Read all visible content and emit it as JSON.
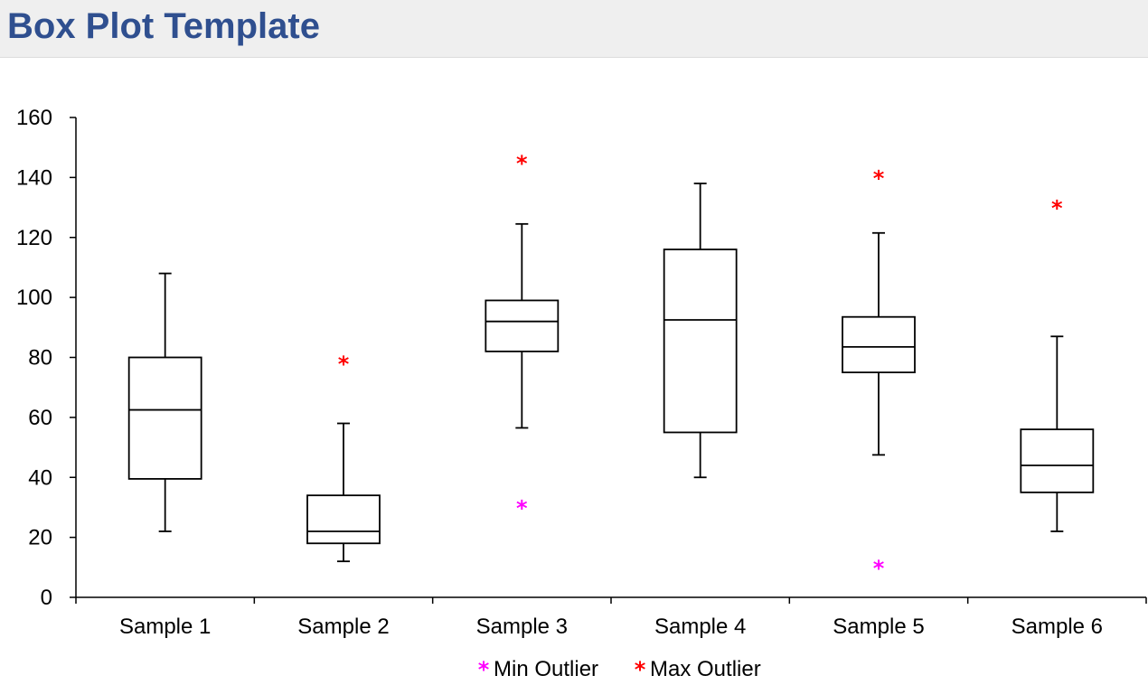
{
  "page": {
    "title": "Box Plot Template"
  },
  "colors": {
    "title": "#2f4f8f",
    "min_outlier": "#ff00ff",
    "max_outlier": "#ff0000",
    "box": "#000000"
  },
  "chart_data": {
    "type": "box",
    "title": "",
    "xlabel": "",
    "ylabel": "",
    "ylim": [
      0,
      160
    ],
    "yticks": [
      0,
      20,
      40,
      60,
      80,
      100,
      120,
      140,
      160
    ],
    "grid": false,
    "legend_position": "bottom",
    "categories": [
      "Sample 1",
      "Sample 2",
      "Sample 3",
      "Sample 4",
      "Sample 5",
      "Sample 6"
    ],
    "boxes": [
      {
        "whisker_low": 22,
        "q1": 39.5,
        "median": 62.5,
        "q3": 80,
        "whisker_high": 108,
        "min_outlier": null,
        "max_outlier": null
      },
      {
        "whisker_low": 12,
        "q1": 18,
        "median": 22,
        "q3": 34,
        "whisker_high": 58,
        "min_outlier": null,
        "max_outlier": 78
      },
      {
        "whisker_low": 56.5,
        "q1": 82,
        "median": 92,
        "q3": 99,
        "whisker_high": 124.5,
        "min_outlier": 30,
        "max_outlier": 145
      },
      {
        "whisker_low": 40,
        "q1": 55,
        "median": 92.5,
        "q3": 116,
        "whisker_high": 138,
        "min_outlier": null,
        "max_outlier": null
      },
      {
        "whisker_low": 47.5,
        "q1": 75,
        "median": 83.5,
        "q3": 93.5,
        "whisker_high": 121.5,
        "min_outlier": 10,
        "max_outlier": 140
      },
      {
        "whisker_low": 22,
        "q1": 35,
        "median": 44,
        "q3": 56,
        "whisker_high": 87,
        "min_outlier": null,
        "max_outlier": 130
      }
    ],
    "legend": {
      "marker": "*",
      "min_outlier_label": "Min Outlier",
      "max_outlier_label": "Max Outlier"
    }
  }
}
